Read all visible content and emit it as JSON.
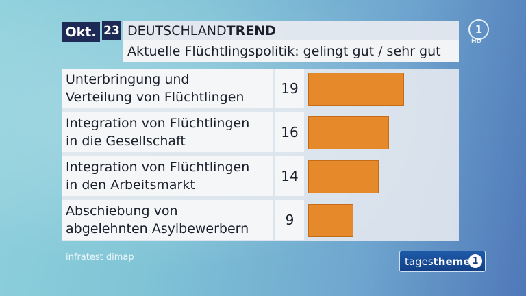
{
  "header": {
    "month": "Okt.",
    "day": "23",
    "title_regular": "DEUTSCHLAND",
    "title_bold": "TREND",
    "subtitle": "Aktuelle Flüchtlingspolitik: gelingt gut / sehr gut"
  },
  "logos": {
    "ard": "1",
    "hd": "HD",
    "tagesthemen_regular": "tages",
    "tagesthemen_bold": "themen",
    "tagesthemen_one": "1"
  },
  "source": "infratest dimap",
  "colors": {
    "bar": "#e5892a",
    "dark_box": "#1c2a55"
  },
  "chart_data": {
    "type": "bar",
    "orientation": "horizontal",
    "title": "Aktuelle Flüchtlingspolitik: gelingt gut / sehr gut",
    "categories": [
      "Unterbringung und\nVerteilung von Flüchtlingen",
      "Integration von Flüchtlingen\nin die Gesellschaft",
      "Integration von Flüchtlingen\nin den Arbeitsmarkt",
      "Abschiebung von\nabgelehnten Asylbewerbern"
    ],
    "values": [
      19,
      16,
      14,
      9
    ],
    "value_labels": [
      "19",
      "16",
      "14",
      "9"
    ],
    "unit": "%"
  }
}
